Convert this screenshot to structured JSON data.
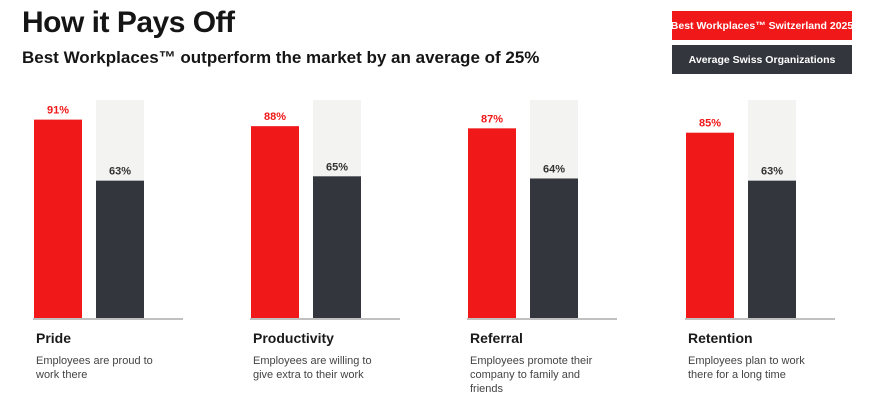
{
  "header": {
    "title": "How it Pays Off",
    "subtitle": "Best Workplaces™ outperform the market by an average of 25%"
  },
  "colors": {
    "best": "#f01818",
    "average": "#33373d",
    "track": "#f3f4f1",
    "axis": "#9a9a9a"
  },
  "chart_data": {
    "type": "bar",
    "categories": [
      "Pride",
      "Productivity",
      "Referral",
      "Retention"
    ],
    "series": [
      {
        "name": "Best Workplaces™ Switzerland 2025",
        "values": [
          91,
          88,
          87,
          85
        ],
        "labels": [
          "91%",
          "88%",
          "87%",
          "85%"
        ]
      },
      {
        "name": "Average Swiss Organizations",
        "values": [
          63,
          65,
          64,
          63
        ],
        "labels": [
          "63%",
          "65%",
          "64%",
          "63%"
        ]
      }
    ],
    "descriptions": [
      "Employees are proud to work there",
      "Employees are willing to give extra to their work",
      "Employees promote their company to family and friends",
      "Employees plan to work there for a long time"
    ],
    "ylim": [
      0,
      100
    ],
    "grid": false,
    "legend_position": "top-right"
  }
}
